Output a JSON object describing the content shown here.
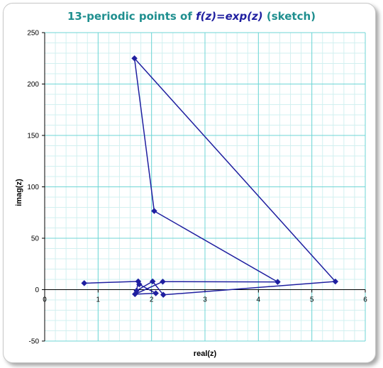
{
  "chart_data": {
    "type": "scatter",
    "title": {
      "prefix": "13-periodic points of ",
      "function": "f(z)=exp(z)",
      "suffix": " (sketch)"
    },
    "xlabel": "real(z)",
    "ylabel": "imag(z)",
    "xlim": [
      0,
      6
    ],
    "ylim": [
      -50,
      250
    ],
    "x_ticks": [
      "0",
      "1",
      "2",
      "3",
      "4",
      "5",
      "6"
    ],
    "y_ticks": [
      "-50",
      "0",
      "50",
      "100",
      "150",
      "200",
      "250"
    ],
    "x_tick_values": [
      0,
      1,
      2,
      3,
      4,
      5,
      6
    ],
    "y_tick_values": [
      -50,
      0,
      50,
      100,
      150,
      200,
      250
    ],
    "grid": "on",
    "legend": "none",
    "series": [
      {
        "connected": true,
        "closed": false,
        "x": [
          0.74,
          1.75,
          1.72,
          2.02,
          2.22,
          5.44,
          1.68,
          2.05,
          4.36,
          2.21,
          1.69,
          2.08,
          1.77
        ],
        "y": [
          6.3,
          8.0,
          -1.0,
          8.0,
          -5.0,
          7.9,
          225.0,
          76.5,
          7.5,
          7.8,
          -4.4,
          -3.5,
          5.2
        ]
      }
    ],
    "colors": {
      "series": "#1f1fa0",
      "grid_major": "#6fd6d6",
      "grid_minor": "#d2f0f0",
      "title": "#1f8f8f",
      "title_function": "#1f1fa0"
    }
  }
}
